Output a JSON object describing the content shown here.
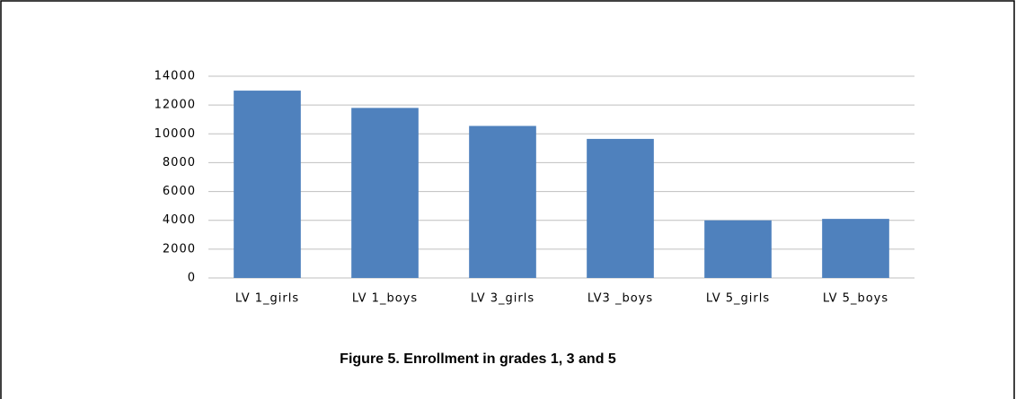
{
  "chart_data": {
    "type": "bar",
    "title": "Figure 5. Enrollment in grades 1, 3 and 5",
    "categories": [
      "LV 1_girls",
      "LV 1_boys",
      "LV 3_girls",
      "LV3 _boys",
      "LV 5_girls",
      "LV 5_boys"
    ],
    "values": [
      13000,
      11800,
      10550,
      9650,
      4000,
      4100
    ],
    "color": "#4f81bd",
    "ylim": [
      0,
      14000
    ],
    "yticks": [
      0,
      2000,
      4000,
      6000,
      8000,
      10000,
      12000,
      14000
    ],
    "grid": true
  }
}
